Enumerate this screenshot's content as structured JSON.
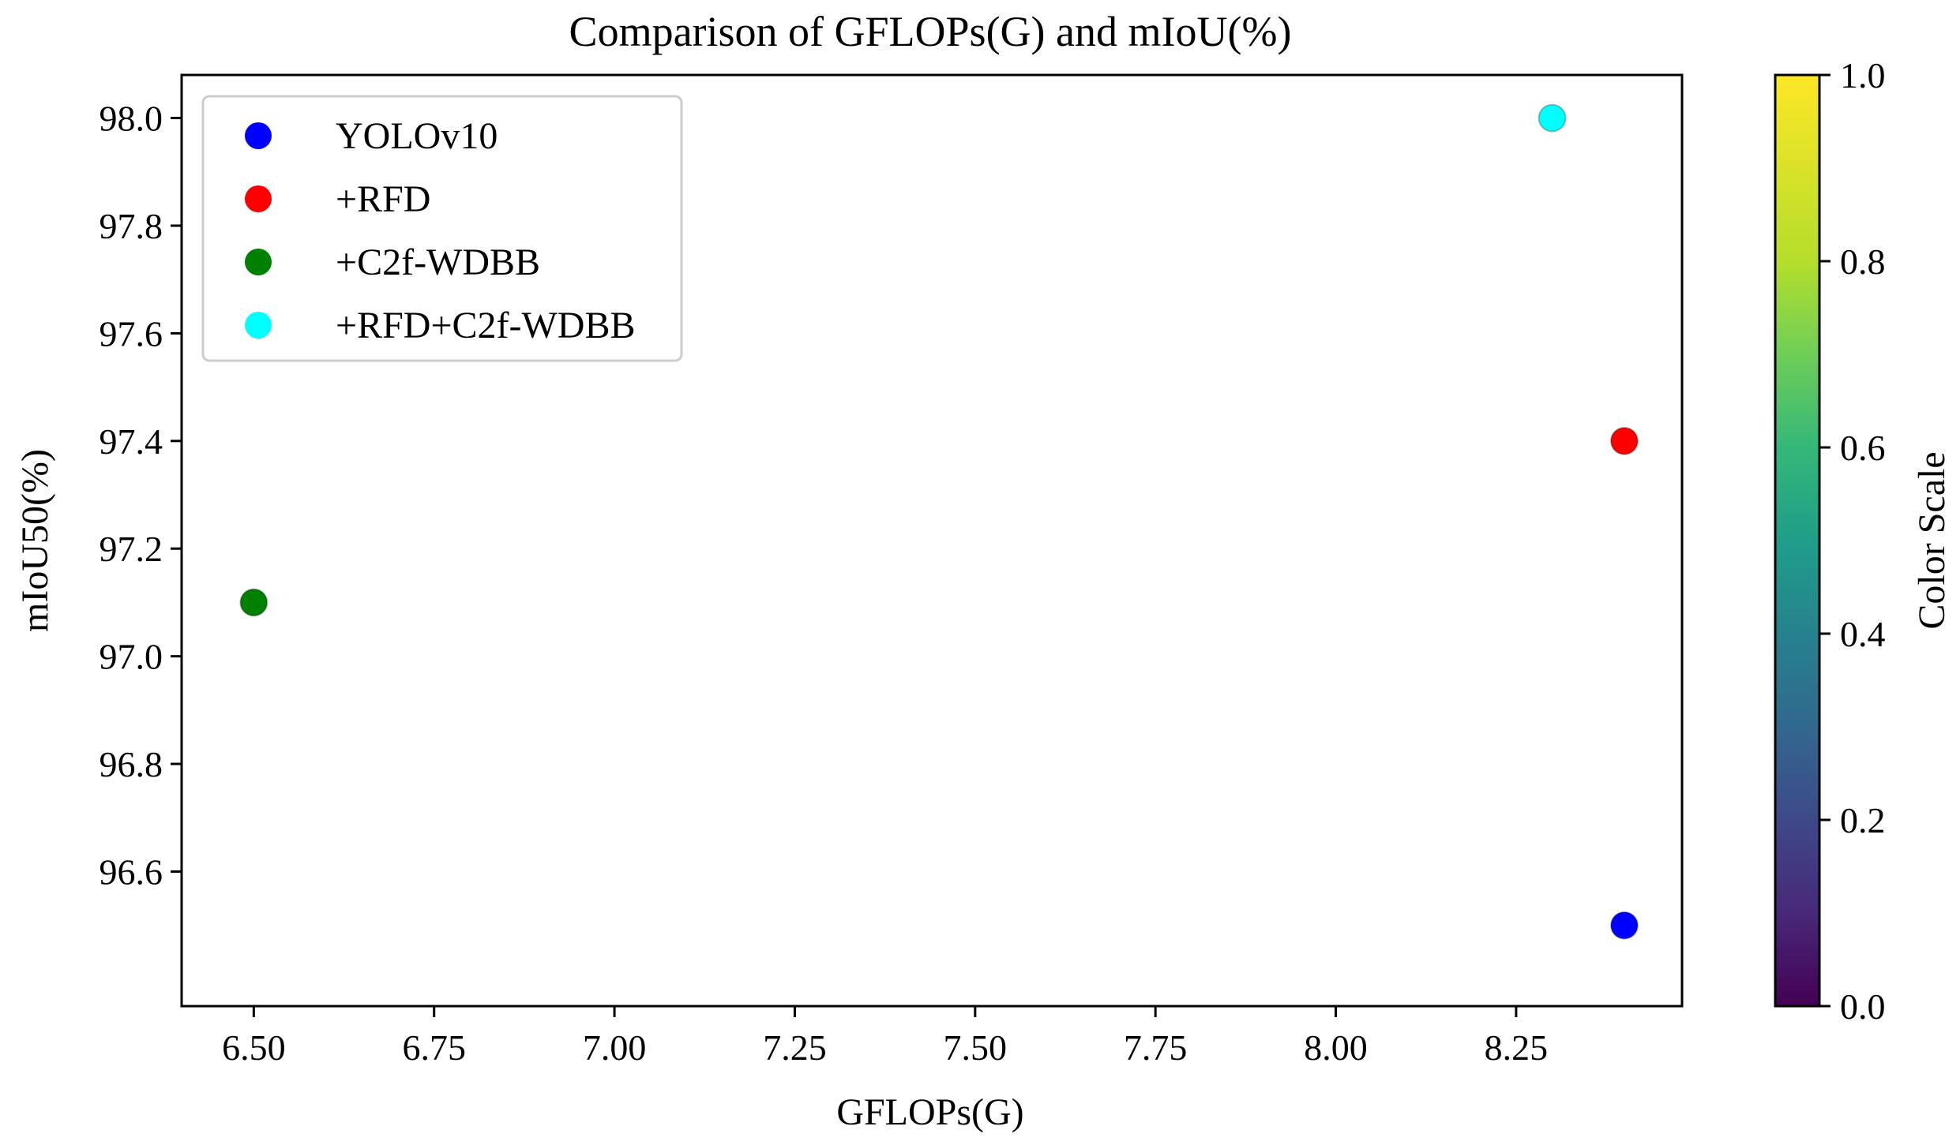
{
  "chart_data": {
    "type": "scatter",
    "title": "Comparison of GFLOPs(G) and mIoU(%)",
    "xlabel": "GFLOPs(G)",
    "ylabel": "mIoU50(%)",
    "xlim": [
      6.4,
      8.48
    ],
    "ylim": [
      96.35,
      98.08
    ],
    "xticks": [
      6.5,
      6.75,
      7.0,
      7.25,
      7.5,
      7.75,
      8.0,
      8.25
    ],
    "xtick_labels": [
      "6.50",
      "6.75",
      "7.00",
      "7.25",
      "7.50",
      "7.75",
      "8.00",
      "8.25"
    ],
    "yticks": [
      96.6,
      96.8,
      97.0,
      97.2,
      97.4,
      97.6,
      97.8,
      98.0
    ],
    "ytick_labels": [
      "96.6",
      "96.8",
      "97.0",
      "97.2",
      "97.4",
      "97.6",
      "97.8",
      "98.0"
    ],
    "grid": false,
    "legend_position": "top-left",
    "series": [
      {
        "name": "YOLOv10",
        "color": "#0000ff",
        "x": [
          8.4
        ],
        "y": [
          96.5
        ]
      },
      {
        "name": "+RFD",
        "color": "#ff0000",
        "x": [
          8.4
        ],
        "y": [
          97.4
        ]
      },
      {
        "name": "+C2f-WDBB",
        "color": "#008000",
        "x": [
          6.5
        ],
        "y": [
          97.1
        ]
      },
      {
        "name": "+RFD+C2f-WDBB",
        "color": "#00ffff",
        "x": [
          8.3
        ],
        "y": [
          98.0
        ]
      }
    ],
    "colorbar": {
      "label": "Color Scale",
      "colormap": "viridis",
      "range": [
        0.0,
        1.0
      ],
      "ticks": [
        0.0,
        0.2,
        0.4,
        0.6,
        0.8,
        1.0
      ],
      "tick_labels": [
        "0.0",
        "0.2",
        "0.4",
        "0.6",
        "0.8",
        "1.0"
      ]
    }
  }
}
